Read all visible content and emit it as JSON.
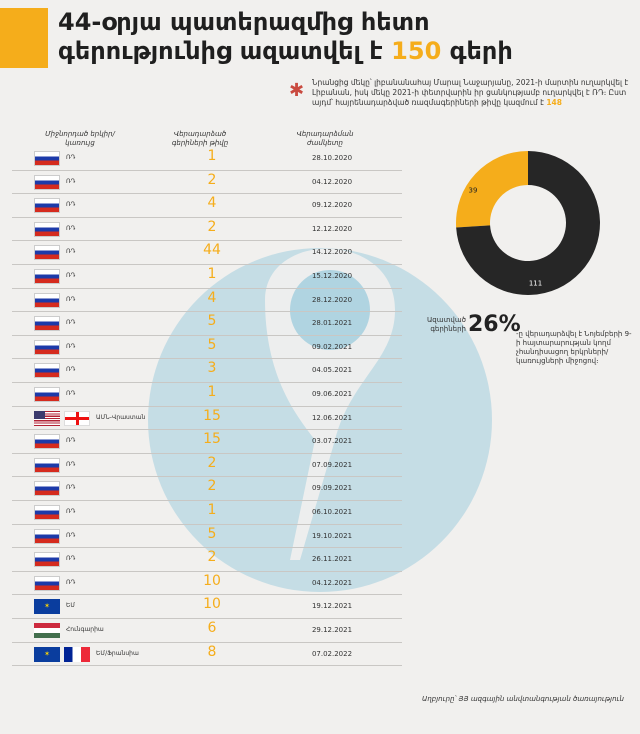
{
  "header": {
    "title_line1": "44-օրյա պատերազմից հետո",
    "title_line2_prefix": "գերությունից ազատվել է ",
    "title_number": "150",
    "title_line2_suffix": " գերի"
  },
  "note": {
    "text": "Նրանցից մեկը՝ լիբանանահայ Մարալ Նաջարյանը, 2021-ի մարտին ուղարկվել է Լիբանան, իսկ մեկը 2021-ի փետրվարին իր ցանկությամբ ուղարկվել է ՌԴ։ Ըստ այդմ՝ հայրենադարձված ռազմագերիների թիվը կազմում է",
    "highlight": "148"
  },
  "columns": {
    "country": "Միջնորդած երկիր/կառույց",
    "count": "Վերադարձած գերիների թիվը",
    "date": "Վերադարձման ժամկետը"
  },
  "rows": [
    {
      "flags": [
        "ru"
      ],
      "country": "ՌԴ",
      "count": "1",
      "date": "28.10.2020"
    },
    {
      "flags": [
        "ru"
      ],
      "country": "ՌԴ",
      "count": "2",
      "date": "04.12.2020"
    },
    {
      "flags": [
        "ru"
      ],
      "country": "ՌԴ",
      "count": "4",
      "date": "09.12.2020"
    },
    {
      "flags": [
        "ru"
      ],
      "country": "ՌԴ",
      "count": "2",
      "date": "12.12.2020"
    },
    {
      "flags": [
        "ru"
      ],
      "country": "ՌԴ",
      "count": "44",
      "date": "14.12.2020"
    },
    {
      "flags": [
        "ru"
      ],
      "country": "ՌԴ",
      "count": "1",
      "date": "15.12.2020"
    },
    {
      "flags": [
        "ru"
      ],
      "country": "ՌԴ",
      "count": "4",
      "date": "28.12.2020"
    },
    {
      "flags": [
        "ru"
      ],
      "country": "ՌԴ",
      "count": "5",
      "date": "28.01.2021"
    },
    {
      "flags": [
        "ru"
      ],
      "country": "ՌԴ",
      "count": "5",
      "date": "09.02.2021"
    },
    {
      "flags": [
        "ru"
      ],
      "country": "ՌԴ",
      "count": "3",
      "date": "04.05.2021"
    },
    {
      "flags": [
        "ru"
      ],
      "country": "ՌԴ",
      "count": "1",
      "date": "09.06.2021"
    },
    {
      "flags": [
        "us",
        "ge"
      ],
      "country": "ԱՄՆ-Վրաստան",
      "count": "15",
      "date": "12.06.2021"
    },
    {
      "flags": [
        "ru"
      ],
      "country": "ՌԴ",
      "count": "15",
      "date": "03.07.2021"
    },
    {
      "flags": [
        "ru"
      ],
      "country": "ՌԴ",
      "count": "2",
      "date": "07.09.2021"
    },
    {
      "flags": [
        "ru"
      ],
      "country": "ՌԴ",
      "count": "2",
      "date": "09.09.2021"
    },
    {
      "flags": [
        "ru"
      ],
      "country": "ՌԴ",
      "count": "1",
      "date": "06.10.2021"
    },
    {
      "flags": [
        "ru"
      ],
      "country": "ՌԴ",
      "count": "5",
      "date": "19.10.2021"
    },
    {
      "flags": [
        "ru"
      ],
      "country": "ՌԴ",
      "count": "2",
      "date": "26.11.2021"
    },
    {
      "flags": [
        "ru"
      ],
      "country": "ՌԴ",
      "count": "10",
      "date": "04.12.2021"
    },
    {
      "flags": [
        "eu"
      ],
      "country": "ԵՄ",
      "count": "10",
      "date": "19.12.2021"
    },
    {
      "flags": [
        "hu"
      ],
      "country": "Հունգարիա",
      "count": "6",
      "date": "29.12.2021"
    },
    {
      "flags": [
        "eu",
        "fr"
      ],
      "country": "ԵՄ/Ֆրանսիա",
      "count": "8",
      "date": "07.02.2022"
    }
  ],
  "chart_data": {
    "type": "pie",
    "variant": "donut",
    "slices": [
      {
        "label": "39",
        "value": 39,
        "color": "#f5ad1b"
      },
      {
        "label": "111",
        "value": 111,
        "color": "#262626"
      }
    ]
  },
  "stat": {
    "left_text": "Ազատված գերիների",
    "percent": "26%",
    "right_text": "-ը վերադարձվել է Նոյեմբերի 9-ի հայտարարության կողմ չհանդիսացող երկրների/կառույցների միջոցով։"
  },
  "source": "Աղբյուրը՝ ՅՅ ազգային անվտանգության ծառայություն",
  "colors": {
    "accent": "#f5ad1b",
    "dark": "#262626",
    "watermark": "#a9d0df",
    "background": "#f1f0ee"
  }
}
